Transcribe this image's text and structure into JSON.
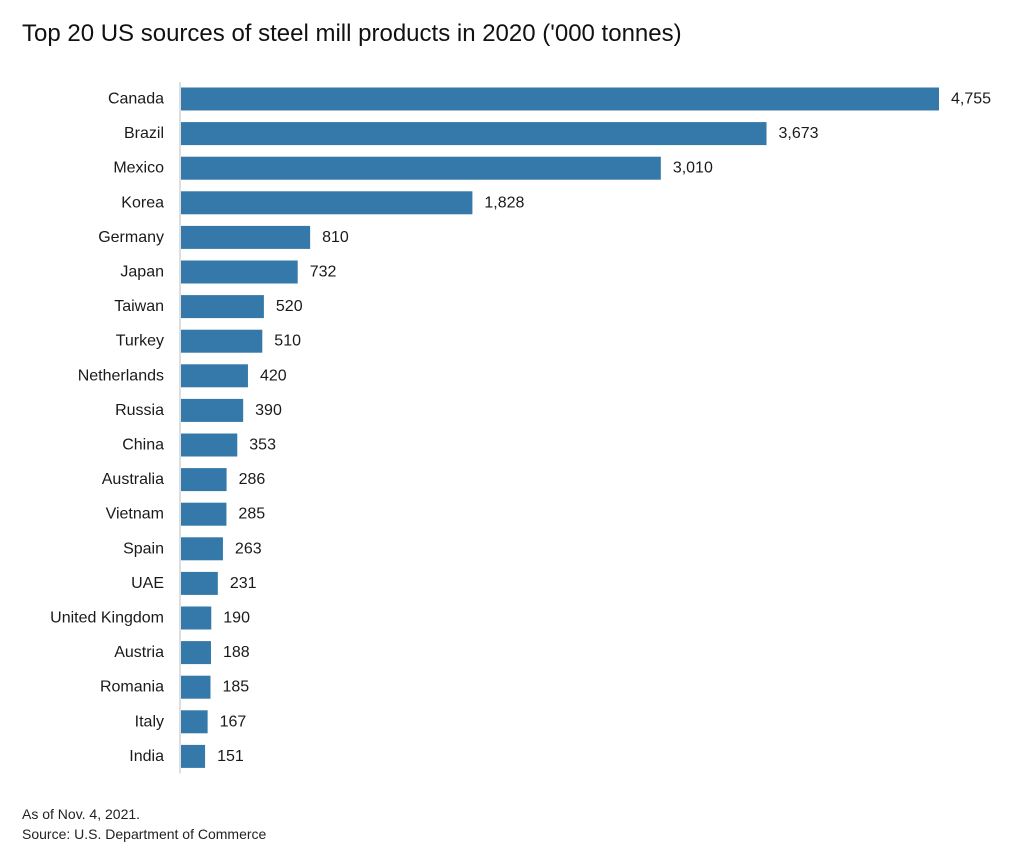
{
  "chart_data": {
    "type": "bar",
    "orientation": "horizontal",
    "title": "Top 20 US sources of steel mill products in 2020 ('000 tonnes)",
    "categories": [
      "Canada",
      "Brazil",
      "Mexico",
      "Korea",
      "Germany",
      "Japan",
      "Taiwan",
      "Turkey",
      "Netherlands",
      "Russia",
      "China",
      "Australia",
      "Vietnam",
      "Spain",
      "UAE",
      "United Kingdom",
      "Austria",
      "Romania",
      "Italy",
      "India"
    ],
    "values": [
      4755,
      3673,
      3010,
      1828,
      810,
      732,
      520,
      510,
      420,
      390,
      353,
      286,
      285,
      263,
      231,
      190,
      188,
      185,
      167,
      151
    ],
    "value_labels": [
      "4,755",
      "3,673",
      "3,010",
      "1,828",
      "810",
      "732",
      "520",
      "510",
      "420",
      "390",
      "353",
      "286",
      "285",
      "263",
      "231",
      "190",
      "188",
      "185",
      "167",
      "151"
    ],
    "bar_color": "#3479a9",
    "xlim": [
      0,
      4755
    ],
    "grid": false,
    "legend": "none"
  },
  "footnotes": {
    "date": "As of Nov. 4, 2021.",
    "source": "Source: U.S. Department of Commerce"
  }
}
